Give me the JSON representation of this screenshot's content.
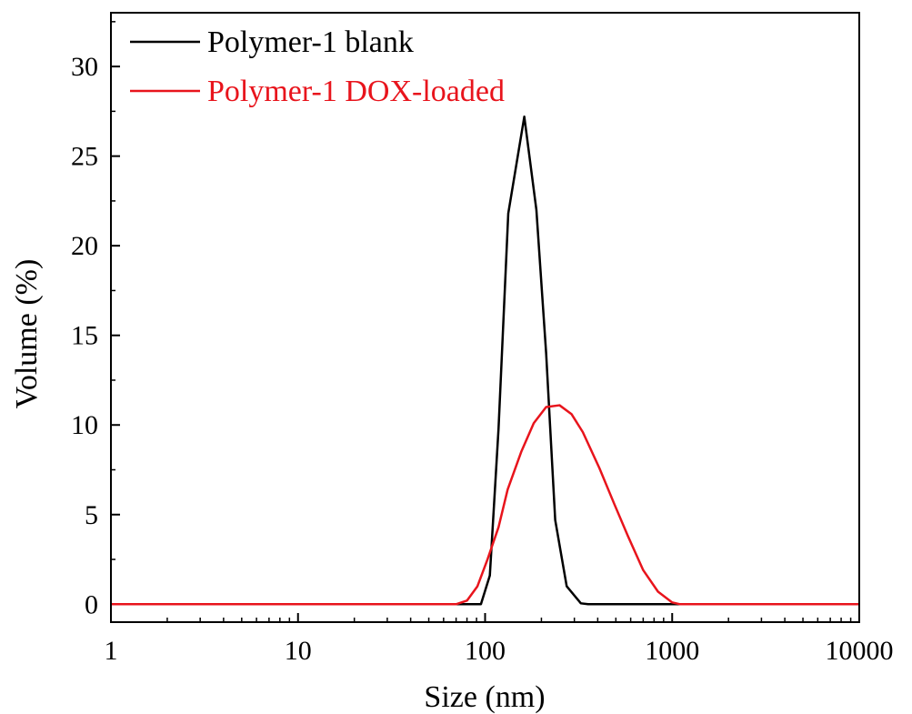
{
  "chart_data": {
    "type": "line",
    "xlabel": "Size (nm)",
    "ylabel": "Volume (%)",
    "xscale": "log",
    "xlim": [
      1,
      10000
    ],
    "ylim": [
      -1,
      33
    ],
    "x_ticks": [
      1,
      10,
      100,
      1000,
      10000
    ],
    "x_tick_labels": [
      "1",
      "10",
      "100",
      "1000",
      "10000"
    ],
    "y_ticks": [
      0,
      5,
      10,
      15,
      20,
      25,
      30
    ],
    "y_tick_labels": [
      "0",
      "5",
      "10",
      "15",
      "20",
      "25",
      "30"
    ],
    "grid": false,
    "legend": {
      "position": "top-left"
    },
    "series": [
      {
        "name": "Polymer-1 blank",
        "color": "#000000",
        "points": [
          [
            1,
            0
          ],
          [
            89,
            0
          ],
          [
            95,
            0
          ],
          [
            106,
            1.6
          ],
          [
            118,
            9.8
          ],
          [
            133,
            21.8
          ],
          [
            162,
            27.2
          ],
          [
            188,
            22
          ],
          [
            212,
            14
          ],
          [
            237,
            4.7
          ],
          [
            273,
            1.0
          ],
          [
            325,
            0.05
          ],
          [
            355,
            0
          ],
          [
            10000,
            0
          ]
        ]
      },
      {
        "name": "Polymer-1 DOX-loaded",
        "color": "#e8141c",
        "points": [
          [
            1,
            0
          ],
          [
            70,
            0
          ],
          [
            80,
            0.2
          ],
          [
            91,
            1.0
          ],
          [
            103,
            2.5
          ],
          [
            118,
            4.3
          ],
          [
            132,
            6.4
          ],
          [
            156,
            8.5
          ],
          [
            182,
            10.1
          ],
          [
            212,
            11.0
          ],
          [
            250,
            11.1
          ],
          [
            290,
            10.6
          ],
          [
            333,
            9.6
          ],
          [
            408,
            7.6
          ],
          [
            490,
            5.6
          ],
          [
            580,
            3.8
          ],
          [
            700,
            1.9
          ],
          [
            840,
            0.7
          ],
          [
            1000,
            0.1
          ],
          [
            1100,
            0
          ],
          [
            10000,
            0
          ]
        ]
      }
    ]
  }
}
